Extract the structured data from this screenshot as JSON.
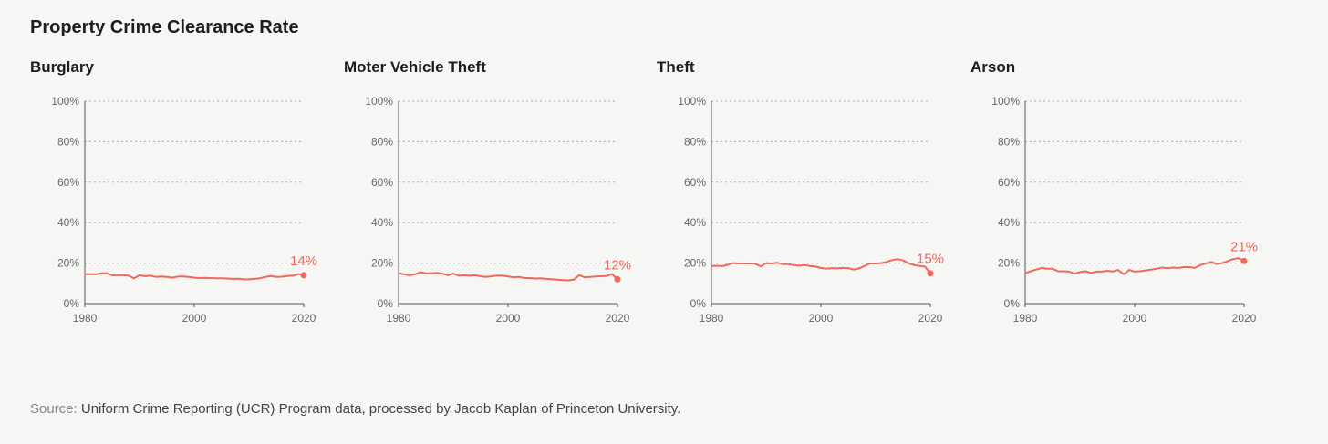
{
  "title": "Property Crime Clearance Rate",
  "source_label": "Source:",
  "source_text": " Uniform Crime Reporting (UCR) Program data, processed by Jacob Kaplan of Princeton University.",
  "colors": {
    "line": "#ef6a5c",
    "axis": "#555555",
    "grid": "#aaaaaa",
    "text": "#666666"
  },
  "chart_data": [
    {
      "type": "line",
      "title": "Burglary",
      "x_start": 1980,
      "x_end": 2020,
      "ylim": [
        0,
        100
      ],
      "yticks": [
        "0%",
        "20%",
        "40%",
        "60%",
        "80%",
        "100%"
      ],
      "xticks": [
        "1980",
        "2000",
        "2020"
      ],
      "end_label": "14%",
      "values": [
        14.5,
        14.5,
        14.5,
        15,
        15,
        14,
        14,
        14,
        13.8,
        12.5,
        14,
        13.5,
        13.8,
        13.2,
        13.4,
        13.2,
        12.8,
        13.4,
        13.4,
        13.2,
        12.8,
        12.6,
        12.7,
        12.6,
        12.5,
        12.5,
        12.4,
        12.2,
        12.3,
        12,
        12,
        12.2,
        12.5,
        13.2,
        13.6,
        13.2,
        13.3,
        13.6,
        13.8,
        14.6,
        14
      ]
    },
    {
      "type": "line",
      "title": "Moter Vehicle Theft",
      "x_start": 1980,
      "x_end": 2020,
      "ylim": [
        0,
        100
      ],
      "yticks": [
        "0%",
        "20%",
        "40%",
        "60%",
        "80%",
        "100%"
      ],
      "xticks": [
        "1980",
        "2000",
        "2020"
      ],
      "end_label": "12%",
      "values": [
        15,
        14.5,
        14,
        14.5,
        15.5,
        15,
        15,
        15.2,
        14.8,
        14,
        14.8,
        13.8,
        14,
        13.8,
        14,
        13.5,
        13.2,
        13.5,
        13.8,
        13.8,
        13.4,
        13,
        13.2,
        12.6,
        12.6,
        12.4,
        12.5,
        12.2,
        12,
        11.8,
        11.6,
        11.5,
        11.8,
        14,
        13,
        13.2,
        13.4,
        13.5,
        13.6,
        14.6,
        12
      ]
    },
    {
      "type": "line",
      "title": "Theft",
      "x_start": 1980,
      "x_end": 2020,
      "ylim": [
        0,
        100
      ],
      "yticks": [
        "0%",
        "20%",
        "40%",
        "60%",
        "80%",
        "100%"
      ],
      "xticks": [
        "1980",
        "2000",
        "2020"
      ],
      "end_label": "15%",
      "values": [
        18.5,
        18.7,
        18.5,
        19.2,
        20,
        19.8,
        19.8,
        19.8,
        19.7,
        18.4,
        20,
        19.8,
        20.2,
        19.5,
        19.5,
        19,
        18.7,
        19,
        18.6,
        18.3,
        17.6,
        17.2,
        17.5,
        17.4,
        17.6,
        17.5,
        16.8,
        17.4,
        18.6,
        19.8,
        19.8,
        20,
        20.6,
        21.5,
        22,
        21.3,
        20,
        19,
        18.6,
        18.3,
        15
      ]
    },
    {
      "type": "line",
      "title": "Arson",
      "x_start": 1980,
      "x_end": 2020,
      "ylim": [
        0,
        100
      ],
      "yticks": [
        "0%",
        "20%",
        "40%",
        "60%",
        "80%",
        "100%"
      ],
      "xticks": [
        "1980",
        "2000",
        "2020"
      ],
      "end_label": "21%",
      "values": [
        15,
        16,
        16.8,
        17.6,
        17.2,
        17.2,
        16,
        16,
        15.8,
        14.8,
        15.6,
        16,
        15.2,
        15.8,
        15.8,
        16.2,
        15.9,
        16.6,
        14.5,
        16.6,
        15.8,
        16,
        16.4,
        16.8,
        17.2,
        17.8,
        17.5,
        17.8,
        17.6,
        18,
        18,
        17.6,
        19,
        19.8,
        20.6,
        19.6,
        20,
        21,
        22,
        22.5,
        21
      ]
    }
  ]
}
